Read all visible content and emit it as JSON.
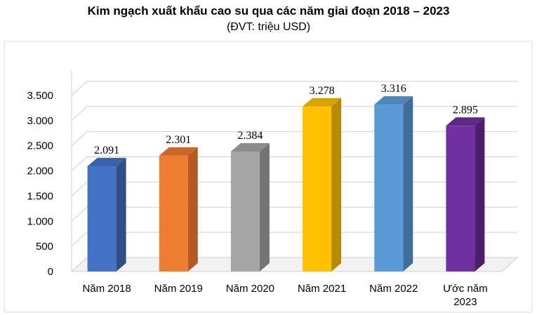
{
  "header": {
    "title": "Kim ngạch xuất khẩu cao su qua các năm giai đoạn 2018 – 2023",
    "subtitle": "(ĐVT: triệu USD)"
  },
  "chart_data": {
    "type": "bar",
    "title": "Kim ngạch xuất khẩu cao su qua các năm giai đoạn 2018 – 2023",
    "subtitle": "(ĐVT: triệu USD)",
    "categories": [
      "Năm 2018",
      "Năm 2019",
      "Năm 2020",
      "Năm 2021",
      "Năm 2022",
      "Ước năm 2023"
    ],
    "values": [
      2091,
      2301,
      2384,
      3278,
      3316,
      2895
    ],
    "data_labels": [
      "2.091",
      "2.301",
      "2.384",
      "3.278",
      "3.316",
      "2.895"
    ],
    "yticks": [
      0,
      500,
      1000,
      1500,
      2000,
      2500,
      3000,
      3500
    ],
    "ytick_labels": [
      "0",
      "500",
      "1.000",
      "1.500",
      "2.000",
      "2.500",
      "3.000",
      "3.500"
    ],
    "ylim": [
      0,
      4000
    ],
    "xlabel": "",
    "ylabel": "",
    "grid": true,
    "style": "3d-column",
    "colors": [
      "#4472C4",
      "#ED7D31",
      "#A5A5A5",
      "#FFC000",
      "#5B9BD5",
      "#7030A0"
    ],
    "side_colors": [
      "#2E4F8A",
      "#B25A20",
      "#747474",
      "#B88A00",
      "#3F6F99",
      "#4B1F6D"
    ],
    "top_colors": [
      "#3A62AA",
      "#C9682A",
      "#8C8C8C",
      "#D9A400",
      "#4E86BA",
      "#5E2888"
    ]
  }
}
